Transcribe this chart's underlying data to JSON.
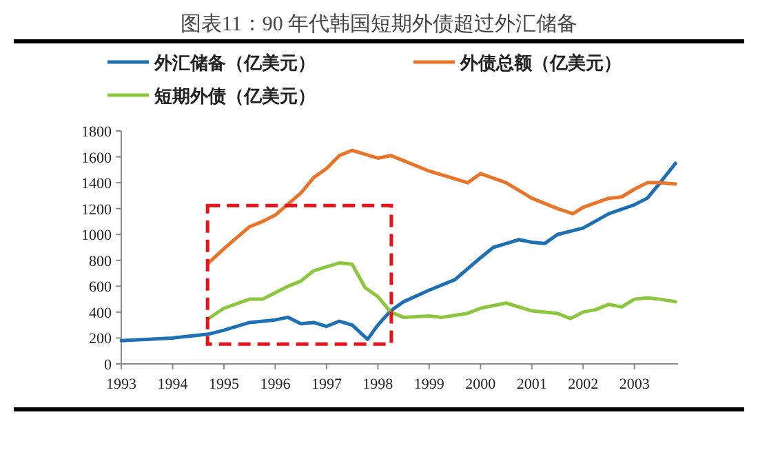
{
  "chart_data": {
    "type": "line",
    "title": "图表11：90 年代韩国短期外债超过外汇储备",
    "xlim": [
      1993,
      2003.85
    ],
    "xticks": [
      1993,
      1994,
      1995,
      1996,
      1997,
      1998,
      1999,
      2000,
      2001,
      2002,
      2003
    ],
    "ylim": [
      0,
      1800
    ],
    "yticks": [
      0,
      200,
      400,
      600,
      800,
      1000,
      1200,
      1400,
      1600,
      1800
    ],
    "grid": false,
    "legend": "top",
    "series": [
      {
        "name": "外汇储备（亿美元）",
        "color": "#1f6fb4",
        "x": [
          1993,
          1994,
          1994.7,
          1995,
          1995.5,
          1996,
          1996.25,
          1996.5,
          1996.75,
          1997,
          1997.25,
          1997.5,
          1997.8,
          1998,
          1998.25,
          1998.5,
          1999,
          1999.5,
          2000,
          2000.25,
          2000.5,
          2000.75,
          2001,
          2001.25,
          2001.5,
          2002,
          2002.5,
          2003,
          2003.25,
          2003.5,
          2003.8
        ],
        "values": [
          180,
          200,
          230,
          260,
          320,
          340,
          360,
          310,
          320,
          290,
          330,
          300,
          190,
          300,
          410,
          480,
          570,
          650,
          820,
          900,
          930,
          960,
          940,
          930,
          1000,
          1050,
          1160,
          1230,
          1280,
          1400,
          1550
        ]
      },
      {
        "name": "外债总额（亿美元）",
        "color": "#e8742a",
        "x": [
          1994.7,
          1995,
          1995.5,
          1995.75,
          1996,
          1996.5,
          1996.75,
          1997,
          1997.25,
          1997.5,
          1997.75,
          1998,
          1998.25,
          1998.5,
          1999,
          1999.5,
          1999.75,
          2000,
          2000.5,
          2001,
          2001.5,
          2001.8,
          2002,
          2002.5,
          2002.75,
          2003,
          2003.25,
          2003.5,
          2003.8
        ],
        "values": [
          780,
          890,
          1060,
          1100,
          1150,
          1320,
          1440,
          1510,
          1610,
          1650,
          1620,
          1590,
          1610,
          1570,
          1490,
          1430,
          1400,
          1470,
          1400,
          1280,
          1200,
          1160,
          1210,
          1280,
          1290,
          1350,
          1400,
          1400,
          1390
        ]
      },
      {
        "name": "短期外债（亿美元）",
        "color": "#8cc63f",
        "x": [
          1994.7,
          1995,
          1995.5,
          1995.75,
          1996,
          1996.25,
          1996.5,
          1996.75,
          1997,
          1997.25,
          1997.5,
          1997.75,
          1998,
          1998.25,
          1998.5,
          1999,
          1999.25,
          1999.75,
          2000,
          2000.5,
          2001,
          2001.5,
          2001.75,
          2002,
          2002.25,
          2002.5,
          2002.75,
          2003,
          2003.25,
          2003.5,
          2003.8
        ],
        "values": [
          350,
          430,
          500,
          500,
          550,
          600,
          640,
          720,
          750,
          780,
          770,
          590,
          520,
          400,
          360,
          370,
          360,
          390,
          430,
          470,
          410,
          390,
          350,
          400,
          420,
          460,
          440,
          500,
          510,
          500,
          480
        ]
      }
    ]
  }
}
